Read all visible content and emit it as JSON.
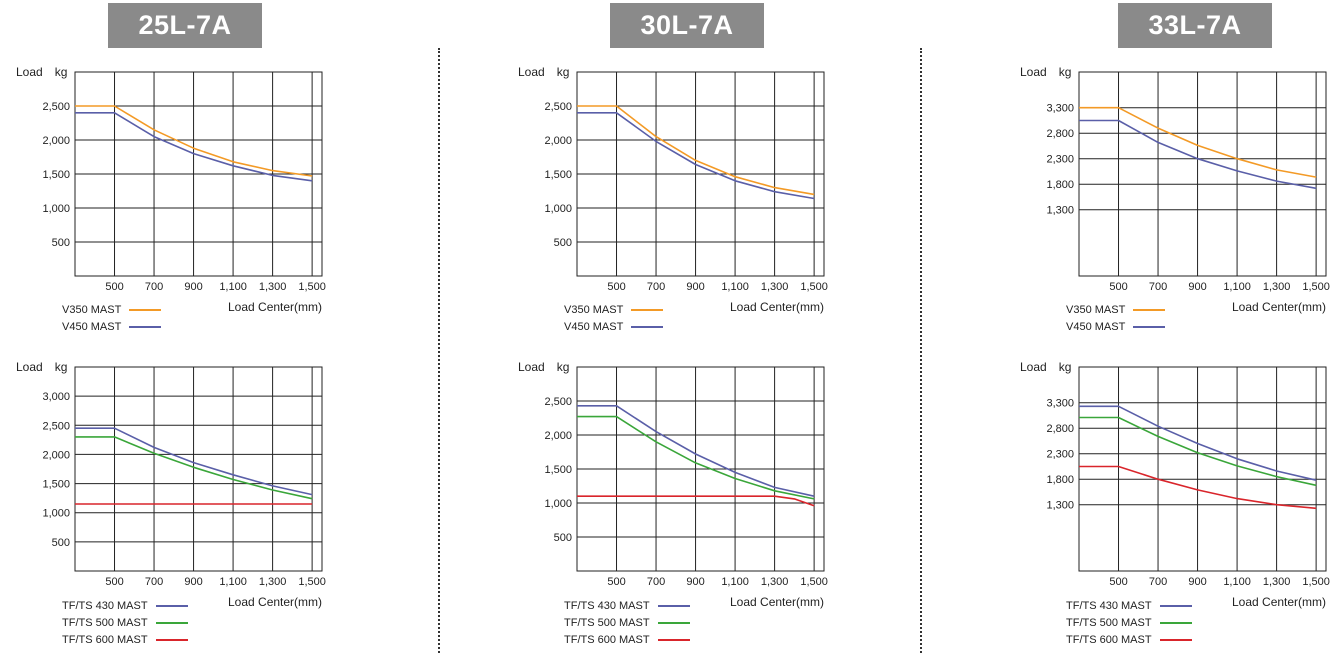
{
  "colors": {
    "orange": "#f39a26",
    "blue": "#5a5fa8",
    "green": "#3aa63a",
    "red": "#d9252b"
  },
  "chart_data": [
    {
      "id": "25L-top",
      "type": "line",
      "model": "25L-7A",
      "ylabel": "Load kg",
      "xlabel": "Load Center(mm)",
      "xlim": [
        300,
        1550
      ],
      "ylim": [
        0,
        3000
      ],
      "xticks": [
        500,
        700,
        900,
        1100,
        1300,
        1500
      ],
      "xtick_labels": [
        "500",
        "700",
        "900",
        "1,100",
        "1,300",
        "1,500"
      ],
      "yticks": [
        500,
        1000,
        1500,
        2000,
        2500
      ],
      "ytick_labels": [
        "500",
        "1,000",
        "1,500",
        "2,000",
        "2,500"
      ],
      "series": [
        {
          "name": "V350 MAST",
          "color": "orange",
          "x": [
            300,
            500,
            700,
            900,
            1100,
            1300,
            1500
          ],
          "y": [
            2500,
            2500,
            2150,
            1880,
            1680,
            1550,
            1470
          ]
        },
        {
          "name": "V450 MAST",
          "color": "blue",
          "x": [
            300,
            500,
            700,
            900,
            1100,
            1300,
            1500
          ],
          "y": [
            2400,
            2400,
            2050,
            1800,
            1620,
            1480,
            1400
          ]
        }
      ]
    },
    {
      "id": "30L-top",
      "type": "line",
      "model": "30L-7A",
      "ylabel": "Load kg",
      "xlabel": "Load Center(mm)",
      "xlim": [
        300,
        1550
      ],
      "ylim": [
        0,
        3000
      ],
      "xticks": [
        500,
        700,
        900,
        1100,
        1300,
        1500
      ],
      "xtick_labels": [
        "500",
        "700",
        "900",
        "1,100",
        "1,300",
        "1,500"
      ],
      "yticks": [
        500,
        1000,
        1500,
        2000,
        2500
      ],
      "ytick_labels": [
        "500",
        "1,000",
        "1,500",
        "2,000",
        "2,500"
      ],
      "series": [
        {
          "name": "V350 MAST",
          "color": "orange",
          "x": [
            300,
            500,
            700,
            900,
            1100,
            1300,
            1500
          ],
          "y": [
            2500,
            2500,
            2050,
            1700,
            1460,
            1300,
            1200
          ]
        },
        {
          "name": "V450 MAST",
          "color": "blue",
          "x": [
            300,
            500,
            700,
            900,
            1100,
            1300,
            1500
          ],
          "y": [
            2400,
            2400,
            1980,
            1640,
            1400,
            1240,
            1140
          ]
        }
      ]
    },
    {
      "id": "33L-top",
      "type": "line",
      "model": "33L-7A",
      "ylabel": "Load kg",
      "xlabel": "Load Center(mm)",
      "xlim": [
        300,
        1550
      ],
      "ylim": [
        0,
        4000
      ],
      "xticks": [
        500,
        700,
        900,
        1100,
        1300,
        1500
      ],
      "xtick_labels": [
        "500",
        "700",
        "900",
        "1,100",
        "1,300",
        "1,500"
      ],
      "yticks": [
        1300,
        1800,
        2300,
        2800,
        3300
      ],
      "ytick_labels": [
        "1,300",
        "1,800",
        "2,300",
        "2,800",
        "3,300"
      ],
      "series": [
        {
          "name": "V350 MAST",
          "color": "orange",
          "x": [
            300,
            500,
            700,
            900,
            1100,
            1300,
            1500
          ],
          "y": [
            3300,
            3300,
            2900,
            2560,
            2300,
            2080,
            1940
          ]
        },
        {
          "name": "V450 MAST",
          "color": "blue",
          "x": [
            300,
            500,
            700,
            900,
            1100,
            1300,
            1500
          ],
          "y": [
            3050,
            3050,
            2620,
            2300,
            2060,
            1860,
            1720
          ]
        }
      ]
    },
    {
      "id": "25L-bottom",
      "type": "line",
      "model": "25L-7A",
      "ylabel": "Load kg",
      "xlabel": "Load Center(mm)",
      "xlim": [
        300,
        1550
      ],
      "ylim": [
        0,
        3500
      ],
      "xticks": [
        500,
        700,
        900,
        1100,
        1300,
        1500
      ],
      "xtick_labels": [
        "500",
        "700",
        "900",
        "1,100",
        "1,300",
        "1,500"
      ],
      "yticks": [
        500,
        1000,
        1500,
        2000,
        2500,
        3000
      ],
      "ytick_labels": [
        "500",
        "1,000",
        "1,500",
        "2,000",
        "2,500",
        "3,000"
      ],
      "series": [
        {
          "name": "TF/TS 430 MAST",
          "color": "blue",
          "x": [
            300,
            500,
            700,
            900,
            1100,
            1300,
            1500
          ],
          "y": [
            2450,
            2450,
            2120,
            1860,
            1650,
            1460,
            1310
          ]
        },
        {
          "name": "TF/TS 500 MAST",
          "color": "green",
          "x": [
            300,
            500,
            700,
            900,
            1100,
            1300,
            1500
          ],
          "y": [
            2300,
            2300,
            2020,
            1780,
            1570,
            1390,
            1240
          ]
        },
        {
          "name": "TF/TS 600 MAST",
          "color": "red",
          "x": [
            300,
            500,
            700,
            900,
            1100,
            1300,
            1500
          ],
          "y": [
            1150,
            1150,
            1150,
            1150,
            1150,
            1150,
            1150
          ]
        }
      ]
    },
    {
      "id": "30L-bottom",
      "type": "line",
      "model": "30L-7A",
      "ylabel": "Load kg",
      "xlabel": "Load Center(mm)",
      "xlim": [
        300,
        1550
      ],
      "ylim": [
        0,
        3000
      ],
      "xticks": [
        500,
        700,
        900,
        1100,
        1300,
        1500
      ],
      "xtick_labels": [
        "500",
        "700",
        "900",
        "1,100",
        "1,300",
        "1,500"
      ],
      "yticks": [
        500,
        1000,
        1500,
        2000,
        2500
      ],
      "ytick_labels": [
        "500",
        "1,000",
        "1,500",
        "2,000",
        "2,500"
      ],
      "series": [
        {
          "name": "TF/TS 430 MAST",
          "color": "blue",
          "x": [
            300,
            500,
            700,
            900,
            1100,
            1300,
            1500
          ],
          "y": [
            2430,
            2430,
            2050,
            1720,
            1450,
            1230,
            1100
          ]
        },
        {
          "name": "TF/TS 500 MAST",
          "color": "green",
          "x": [
            300,
            500,
            700,
            900,
            1100,
            1300,
            1500
          ],
          "y": [
            2270,
            2270,
            1900,
            1590,
            1360,
            1180,
            1060
          ]
        },
        {
          "name": "TF/TS 600 MAST",
          "color": "red",
          "x": [
            300,
            500,
            700,
            900,
            1100,
            1300,
            1400,
            1500
          ],
          "y": [
            1100,
            1100,
            1100,
            1100,
            1100,
            1100,
            1060,
            960
          ]
        }
      ]
    },
    {
      "id": "33L-bottom",
      "type": "line",
      "model": "33L-7A",
      "ylabel": "Load kg",
      "xlabel": "Load Center(mm)",
      "xlim": [
        300,
        1550
      ],
      "ylim": [
        0,
        4000
      ],
      "xticks": [
        500,
        700,
        900,
        1100,
        1300,
        1500
      ],
      "xtick_labels": [
        "500",
        "700",
        "900",
        "1,100",
        "1,300",
        "1,500"
      ],
      "yticks": [
        1300,
        1800,
        2300,
        2800,
        3300
      ],
      "ytick_labels": [
        "1,300",
        "1,800",
        "2,300",
        "2,800",
        "3,300"
      ],
      "series": [
        {
          "name": "TF/TS 430 MAST",
          "color": "blue",
          "x": [
            300,
            500,
            700,
            900,
            1100,
            1300,
            1500
          ],
          "y": [
            3230,
            3230,
            2840,
            2500,
            2200,
            1960,
            1780
          ]
        },
        {
          "name": "TF/TS 500 MAST",
          "color": "green",
          "x": [
            300,
            500,
            700,
            900,
            1100,
            1300,
            1500
          ],
          "y": [
            3010,
            3010,
            2640,
            2320,
            2060,
            1850,
            1680
          ]
        },
        {
          "name": "TF/TS 600 MAST",
          "color": "red",
          "x": [
            300,
            500,
            700,
            900,
            1100,
            1300,
            1500
          ],
          "y": [
            2050,
            2050,
            1800,
            1590,
            1420,
            1300,
            1230
          ]
        }
      ]
    }
  ]
}
